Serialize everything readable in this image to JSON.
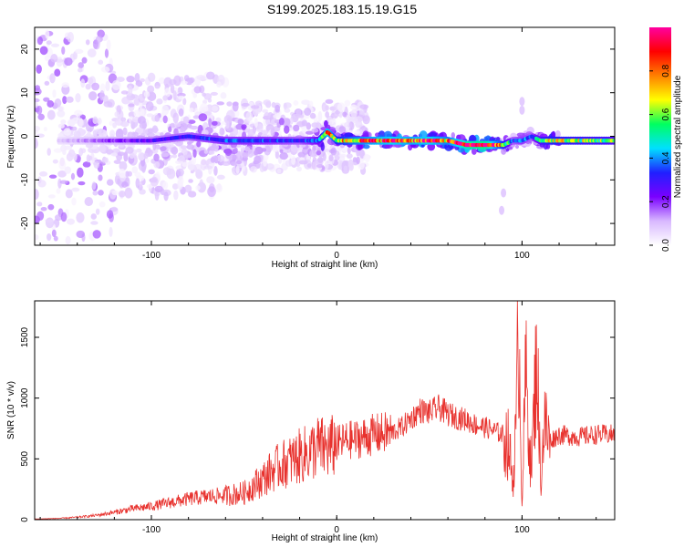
{
  "title": "S199.2025.183.15.19.G15",
  "chart_data": [
    {
      "type": "heatmap",
      "xlabel": "Height of straight line (km)",
      "ylabel": "Frequency (Hz)",
      "xlim": [
        -163,
        150
      ],
      "ylim": [
        -25,
        25
      ],
      "xticks": [
        -100,
        0,
        100
      ],
      "yticks": [
        -20,
        -10,
        0,
        10,
        20
      ],
      "colorbar": {
        "label": "Normalized spectral amplitude",
        "range": [
          0,
          1
        ],
        "ticks": [
          "0.0",
          "0.2",
          "0.4",
          "0.6",
          "0.8"
        ],
        "tick_values": [
          0,
          0.2,
          0.4,
          0.6,
          0.8
        ],
        "colors": [
          "#ffffff",
          "#d8b8ff",
          "#7a00ff",
          "#2020ff",
          "#00e0ff",
          "#00ff60",
          "#ffff00",
          "#ff8000",
          "#ff0000",
          "#ff00a0"
        ]
      },
      "ridge": {
        "x": [
          -160,
          -140,
          -120,
          -100,
          -80,
          -60,
          -40,
          -20,
          -10,
          -5,
          0,
          10,
          20,
          30,
          40,
          50,
          60,
          70,
          80,
          90,
          95,
          100,
          105,
          110,
          115,
          130,
          150
        ],
        "y": [
          -1,
          -1,
          -1,
          -1,
          0,
          -1,
          -1,
          -1,
          -1,
          1,
          -1,
          -1,
          -1,
          -1,
          -1,
          -1,
          -1,
          -2,
          -2,
          -2,
          -1,
          -1,
          0,
          -1,
          -1,
          -1,
          -1
        ],
        "amplitude": [
          0.05,
          0.12,
          0.2,
          0.25,
          0.3,
          0.35,
          0.35,
          0.3,
          0.4,
          0.8,
          0.6,
          0.7,
          0.75,
          0.8,
          0.75,
          0.8,
          0.7,
          0.9,
          0.95,
          0.6,
          0.3,
          0.35,
          0.3,
          0.5,
          0.6,
          0.55,
          0.5
        ]
      }
    },
    {
      "type": "line",
      "xlabel": "Height of straight line (km)",
      "ylabel": "SNR (10 * v/v)",
      "xlim": [
        -163,
        150
      ],
      "ylim": [
        0,
        1800
      ],
      "xticks": [
        -100,
        0,
        100
      ],
      "yticks": [
        0,
        500,
        1000,
        1500
      ],
      "color": "#e8322e",
      "series": [
        {
          "x": [
            -163,
            -150,
            -140,
            -130,
            -120,
            -110,
            -100,
            -90,
            -80,
            -70,
            -60,
            -50,
            -45,
            -40,
            -35,
            -30,
            -25,
            -20,
            -15,
            -10,
            -5,
            0,
            5,
            10,
            15,
            20,
            30,
            35,
            40,
            45,
            50,
            55,
            60,
            65,
            70,
            75,
            80,
            85,
            90,
            93,
            95,
            97,
            98,
            100,
            102,
            105,
            108,
            110,
            112,
            115,
            120,
            130,
            140,
            150
          ],
          "y": [
            5,
            10,
            20,
            35,
            60,
            90,
            110,
            140,
            170,
            190,
            200,
            220,
            280,
            330,
            400,
            450,
            480,
            520,
            550,
            600,
            580,
            620,
            650,
            660,
            680,
            700,
            720,
            760,
            830,
            900,
            880,
            920,
            870,
            840,
            820,
            780,
            760,
            730,
            700,
            600,
            300,
            800,
            1780,
            150,
            1200,
            400,
            1400,
            300,
            800,
            650,
            700,
            680,
            700,
            700
          ]
        }
      ]
    }
  ]
}
